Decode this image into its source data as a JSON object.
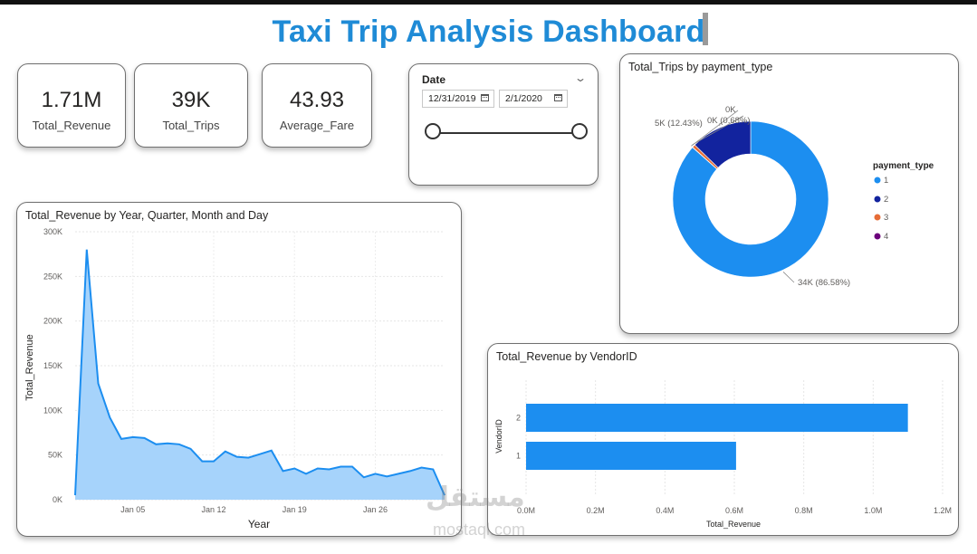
{
  "dashboard": {
    "title": "Taxi Trip Analysis Dashboard"
  },
  "kpis": [
    {
      "value": "1.71M",
      "label": "Total_Revenue"
    },
    {
      "value": "39K",
      "label": "Total_Trips"
    },
    {
      "value": "43.93",
      "label": "Average_Fare"
    }
  ],
  "date_slicer": {
    "title": "Date",
    "start": "12/31/2019",
    "end": "2/1/2020",
    "range_fraction": [
      0,
      1
    ],
    "icons": {
      "expand": "chevron-down-icon",
      "calendar": "calendar-icon"
    }
  },
  "colors": {
    "accent": "#1f8bd6",
    "series_blue": "#1c8ef0",
    "area_fill": "#a6d3fb",
    "dark_navy": "#12239e",
    "orange": "#e66c37",
    "purple": "#6b007b"
  },
  "watermark": {
    "ar": "مستقل",
    "en": "mostaql.com"
  },
  "chart_data": [
    {
      "type": "area",
      "title": "Total_Revenue by Year, Quarter, Month and Day",
      "xlabel": "Year",
      "ylabel": "Total_Revenue",
      "x_tick_labels": [
        "Jan 05",
        "Jan 12",
        "Jan 19",
        "Jan 26"
      ],
      "x_tick_days": [
        5,
        12,
        19,
        26
      ],
      "y_tick_labels": [
        "0K",
        "50K",
        "100K",
        "150K",
        "200K",
        "250K",
        "300K"
      ],
      "ylim": [
        0,
        300000
      ],
      "x_days": [
        0,
        1,
        2,
        3,
        4,
        5,
        6,
        7,
        8,
        9,
        10,
        11,
        12,
        13,
        14,
        15,
        16,
        17,
        18,
        19,
        20,
        21,
        22,
        23,
        24,
        25,
        26,
        27,
        28,
        29,
        30,
        31,
        32
      ],
      "values": [
        5000,
        280000,
        130000,
        92000,
        68000,
        70000,
        69000,
        62000,
        63000,
        62000,
        57000,
        43000,
        43000,
        54000,
        48000,
        47000,
        51000,
        55000,
        32000,
        35000,
        29000,
        35000,
        34000,
        37000,
        37000,
        25000,
        29000,
        26000,
        29000,
        32000,
        36000,
        34000,
        5000
      ],
      "grid": true
    },
    {
      "type": "pie",
      "title": "Total_Trips by payment_type",
      "legend_title": "payment_type",
      "legend_position": "right",
      "categories": [
        "1",
        "2",
        "3",
        "4"
      ],
      "values": [
        34000,
        5000,
        250,
        20
      ],
      "data_labels": [
        "34K (86.58%)",
        "5K (12.43%)",
        "0K (0.68%)",
        "0K"
      ]
    },
    {
      "type": "bar",
      "title": "Total_Revenue by VendorID",
      "xlabel": "Total_Revenue",
      "ylabel": "VendorID",
      "categories": [
        "2",
        "1"
      ],
      "values": [
        1100000,
        605000
      ],
      "xlim": [
        0,
        1200000
      ],
      "x_tick_labels": [
        "0.0M",
        "0.2M",
        "0.4M",
        "0.6M",
        "0.8M",
        "1.0M",
        "1.2M"
      ],
      "grid": true
    }
  ]
}
